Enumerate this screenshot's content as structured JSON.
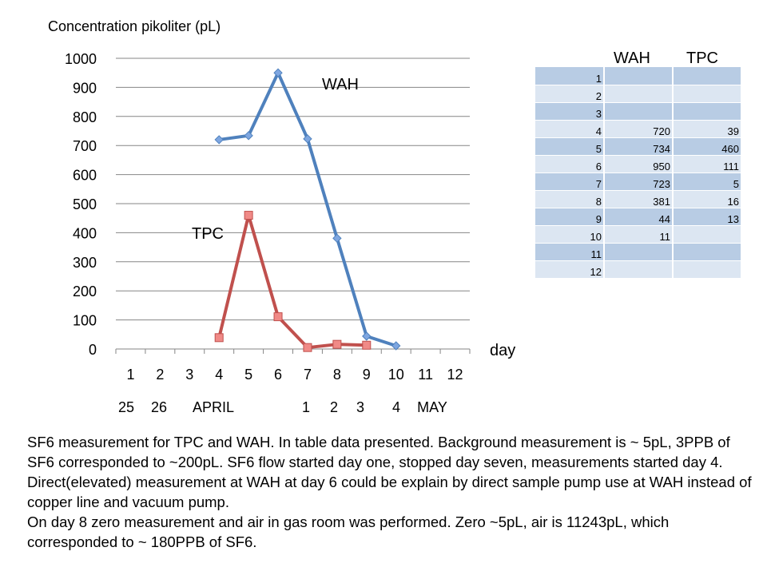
{
  "chart_data": {
    "type": "line",
    "ylabel": "Concentration pikoliter (pL)",
    "xlabel": "day",
    "ylim": [
      0,
      1000
    ],
    "yticks": [
      0,
      100,
      200,
      300,
      400,
      500,
      600,
      700,
      800,
      900,
      1000
    ],
    "categories": [
      "1",
      "2",
      "3",
      "4",
      "5",
      "6",
      "7",
      "8",
      "9",
      "10",
      "11",
      "12"
    ],
    "date_labels": [
      "25",
      "26",
      "APRIL",
      "1",
      "2",
      "3",
      "4",
      "MAY"
    ],
    "grid": "horizontal",
    "series": [
      {
        "name": "WAH",
        "color": "#4f81bd",
        "marker": "diamond",
        "x": [
          4,
          5,
          6,
          7,
          8,
          9,
          10
        ],
        "values": [
          720,
          734,
          950,
          723,
          381,
          44,
          11
        ]
      },
      {
        "name": "TPC",
        "color": "#c0504d",
        "marker": "square",
        "x": [
          4,
          5,
          6,
          7,
          8,
          9
        ],
        "values": [
          39,
          460,
          111,
          5,
          16,
          13
        ]
      }
    ]
  },
  "table": {
    "headers": [
      "WAH",
      "TPC"
    ],
    "rows": [
      {
        "day": "1",
        "wah": "",
        "tpc": ""
      },
      {
        "day": "2",
        "wah": "",
        "tpc": ""
      },
      {
        "day": "3",
        "wah": "",
        "tpc": ""
      },
      {
        "day": "4",
        "wah": "720",
        "tpc": "39"
      },
      {
        "day": "5",
        "wah": "734",
        "tpc": "460"
      },
      {
        "day": "6",
        "wah": "950",
        "tpc": "111"
      },
      {
        "day": "7",
        "wah": "723",
        "tpc": "5"
      },
      {
        "day": "8",
        "wah": "381",
        "tpc": "16"
      },
      {
        "day": "9",
        "wah": "44",
        "tpc": "13"
      },
      {
        "day": "10",
        "wah": "11",
        "tpc": ""
      },
      {
        "day": "11",
        "wah": "",
        "tpc": ""
      },
      {
        "day": "12",
        "wah": "",
        "tpc": ""
      }
    ]
  },
  "description": [
    "SF6 measurement for TPC and WAH. In table data presented. Background measurement is ~ 5pL, 3PPB of SF6 corresponded to ~200pL. SF6 flow started day one, stopped day seven, measurements started day 4. Direct(elevated) measurement at WAH at day 6 could be explain by direct sample pump use at WAH instead of copper line and vacuum pump.",
    "On day 8 zero measurement and air in gas room was performed. Zero ~5pL, air is 11243pL, which corresponded to ~ 180PPB of SF6."
  ]
}
